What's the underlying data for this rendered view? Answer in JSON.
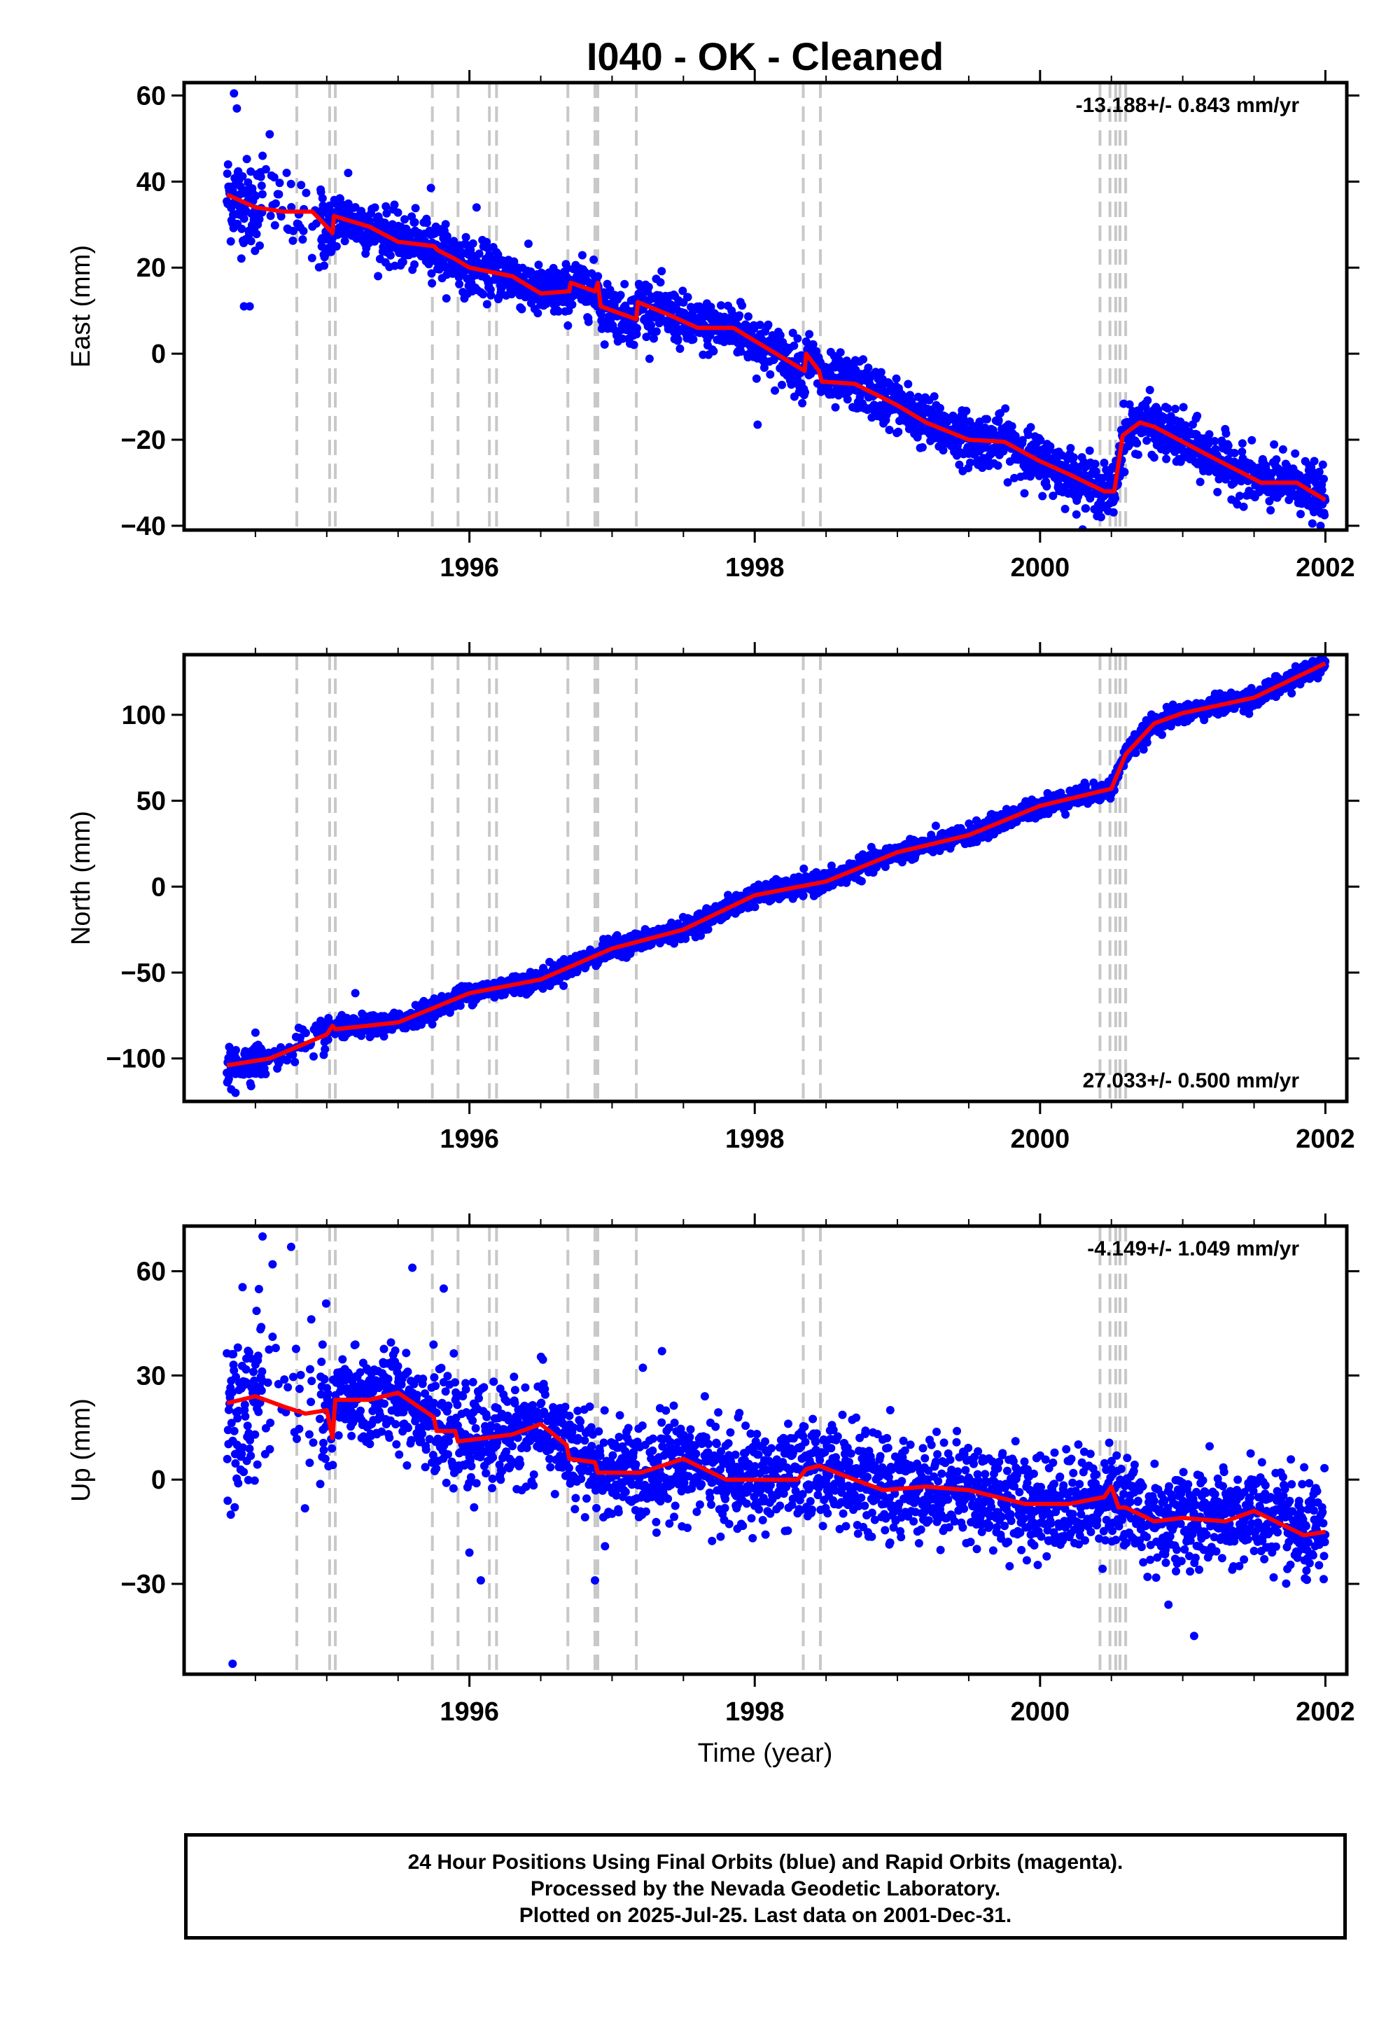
{
  "title": "I040  - OK - Cleaned",
  "xlabel": "Time (year)",
  "footer": {
    "line1": "24 Hour Positions Using Final Orbits (blue) and Rapid Orbits (magenta).",
    "line2": "Processed by the Nevada Geodetic Laboratory.",
    "line3": "Plotted on 2025-Jul-25. Last data on 2001-Dec-31."
  },
  "colors": {
    "data": "#0000ff",
    "model": "#ff0000",
    "steps": "#c8c8c8",
    "frame": "#000000"
  },
  "chart_data": [
    {
      "type": "scatter",
      "component": "east",
      "ylabel": "East (mm)",
      "rate_label": "-13.188+/- 0.843 mm/yr",
      "rate_position": "top-right",
      "xlim": [
        1994.0,
        2002.15
      ],
      "ylim": [
        -41,
        63
      ],
      "xticks": [
        1996,
        1998,
        2000,
        2002
      ],
      "yticks": [
        -40,
        -20,
        0,
        20,
        40,
        60
      ],
      "ytick_labels": [
        "−40",
        "−20",
        "0",
        "20",
        "40",
        "60"
      ],
      "noise_sd": 3.0,
      "model_line": [
        [
          1994.3,
          37
        ],
        [
          1994.5,
          34
        ],
        [
          1994.7,
          33
        ],
        [
          1994.9,
          33
        ],
        [
          1995.0,
          29.5
        ],
        [
          1995.04,
          28
        ],
        [
          1995.05,
          32
        ],
        [
          1995.3,
          29.5
        ],
        [
          1995.5,
          26
        ],
        [
          1995.75,
          25
        ],
        [
          1995.78,
          24
        ],
        [
          1995.9,
          22
        ],
        [
          1996.0,
          20
        ],
        [
          1996.3,
          18
        ],
        [
          1996.5,
          14
        ],
        [
          1996.7,
          14.5
        ],
        [
          1996.71,
          16.5
        ],
        [
          1996.88,
          14.5
        ],
        [
          1996.9,
          16.5
        ],
        [
          1996.92,
          11
        ],
        [
          1997.17,
          8
        ],
        [
          1997.18,
          12
        ],
        [
          1997.4,
          9
        ],
        [
          1997.6,
          6
        ],
        [
          1997.85,
          6
        ],
        [
          1998.0,
          3
        ],
        [
          1998.35,
          -4
        ],
        [
          1998.36,
          0
        ],
        [
          1998.45,
          -4
        ],
        [
          1998.47,
          -6.5
        ],
        [
          1998.7,
          -7
        ],
        [
          1999.0,
          -12
        ],
        [
          1999.2,
          -16
        ],
        [
          1999.5,
          -20
        ],
        [
          1999.75,
          -20.5
        ],
        [
          2000.0,
          -25
        ],
        [
          2000.2,
          -28
        ],
        [
          2000.45,
          -32
        ],
        [
          2000.52,
          -32
        ],
        [
          2000.58,
          -19
        ],
        [
          2000.7,
          -16
        ],
        [
          2000.8,
          -17
        ],
        [
          2001.2,
          -24
        ],
        [
          2001.55,
          -30
        ],
        [
          2001.8,
          -30
        ],
        [
          2002.0,
          -34
        ]
      ],
      "outliers": [
        [
          1994.35,
          60.5
        ],
        [
          1994.37,
          57
        ],
        [
          1994.6,
          51
        ],
        [
          1994.55,
          46
        ],
        [
          1994.42,
          11
        ],
        [
          1994.46,
          11
        ],
        [
          1995.15,
          42
        ],
        [
          1996.05,
          34
        ],
        [
          1995.73,
          38.5
        ],
        [
          1997.9,
          12
        ],
        [
          1998.02,
          -16.5
        ]
      ]
    },
    {
      "type": "scatter",
      "component": "north",
      "ylabel": "North (mm)",
      "rate_label": "27.033+/- 0.500 mm/yr",
      "rate_position": "bottom-right",
      "xlim": [
        1994.0,
        2002.15
      ],
      "ylim": [
        -125,
        135
      ],
      "xticks": [
        1996,
        1998,
        2000,
        2002
      ],
      "yticks": [
        -100,
        -50,
        0,
        50,
        100
      ],
      "ytick_labels": [
        "−100",
        "−50",
        "0",
        "50",
        "100"
      ],
      "noise_sd": 2.8,
      "model_line": [
        [
          1994.3,
          -104
        ],
        [
          1994.6,
          -100
        ],
        [
          1995.0,
          -86
        ],
        [
          1995.04,
          -81
        ],
        [
          1995.06,
          -83
        ],
        [
          1995.5,
          -79
        ],
        [
          1996.0,
          -62
        ],
        [
          1996.5,
          -54
        ],
        [
          1997.0,
          -36
        ],
        [
          1997.5,
          -25
        ],
        [
          1998.0,
          -5
        ],
        [
          1998.5,
          3
        ],
        [
          1999.0,
          20
        ],
        [
          1999.5,
          30
        ],
        [
          2000.0,
          47
        ],
        [
          2000.5,
          57
        ],
        [
          2000.6,
          77
        ],
        [
          2000.8,
          95
        ],
        [
          2001.0,
          101
        ],
        [
          2001.5,
          110
        ],
        [
          2002.0,
          130
        ]
      ],
      "outliers": [
        [
          1994.33,
          -118
        ],
        [
          1994.36,
          -120
        ],
        [
          1994.5,
          -85
        ],
        [
          1995.2,
          -62
        ]
      ]
    },
    {
      "type": "scatter",
      "component": "up",
      "ylabel": "Up (mm)",
      "rate_label": "-4.149+/- 1.049 mm/yr",
      "rate_position": "top-right",
      "xlim": [
        1994.0,
        2002.15
      ],
      "ylim": [
        -56,
        73
      ],
      "xticks": [
        1996,
        1998,
        2000,
        2002
      ],
      "yticks": [
        -30,
        0,
        30,
        60
      ],
      "ytick_labels": [
        "−30",
        "0",
        "30",
        "60"
      ],
      "noise_sd": 7.0,
      "model_line": [
        [
          1994.3,
          22
        ],
        [
          1994.5,
          24
        ],
        [
          1994.7,
          21
        ],
        [
          1994.85,
          19
        ],
        [
          1995.0,
          20
        ],
        [
          1995.04,
          12
        ],
        [
          1995.06,
          23
        ],
        [
          1995.3,
          23
        ],
        [
          1995.5,
          25
        ],
        [
          1995.75,
          18
        ],
        [
          1995.77,
          14
        ],
        [
          1995.9,
          14
        ],
        [
          1995.92,
          11
        ],
        [
          1996.3,
          13
        ],
        [
          1996.5,
          16
        ],
        [
          1996.68,
          10
        ],
        [
          1996.7,
          6
        ],
        [
          1996.88,
          5
        ],
        [
          1996.9,
          2
        ],
        [
          1997.2,
          2
        ],
        [
          1997.5,
          6
        ],
        [
          1997.8,
          0
        ],
        [
          1998.0,
          0
        ],
        [
          1998.3,
          0
        ],
        [
          1998.36,
          3
        ],
        [
          1998.45,
          4
        ],
        [
          1998.7,
          0
        ],
        [
          1998.9,
          -3
        ],
        [
          1999.2,
          -2
        ],
        [
          1999.5,
          -3
        ],
        [
          1999.9,
          -7
        ],
        [
          2000.2,
          -7
        ],
        [
          2000.45,
          -5
        ],
        [
          2000.5,
          -2
        ],
        [
          2000.55,
          -8
        ],
        [
          2000.6,
          -8
        ],
        [
          2000.8,
          -12
        ],
        [
          2001.0,
          -11
        ],
        [
          2001.3,
          -12
        ],
        [
          2001.5,
          -9
        ],
        [
          2001.85,
          -16
        ],
        [
          2002.0,
          -15
        ]
      ],
      "outliers": [
        [
          1994.34,
          -53
        ],
        [
          1994.55,
          70
        ],
        [
          1994.62,
          62
        ],
        [
          1994.75,
          67
        ],
        [
          1995.6,
          61
        ],
        [
          1995.82,
          55
        ],
        [
          1996.0,
          -21
        ],
        [
          1996.08,
          -29
        ],
        [
          1996.88,
          -29
        ],
        [
          1997.35,
          37
        ],
        [
          1997.65,
          24
        ],
        [
          1998.95,
          20
        ],
        [
          2000.9,
          -36
        ],
        [
          2001.08,
          -45
        ]
      ]
    }
  ],
  "step_lines": [
    1994.79,
    1995.02,
    1995.06,
    1995.74,
    1995.92,
    1996.14,
    1996.19,
    1996.69,
    1996.88,
    1996.9,
    1997.17,
    1998.34,
    1998.46,
    2000.42,
    2000.49,
    2000.53,
    2000.56,
    2000.6
  ]
}
